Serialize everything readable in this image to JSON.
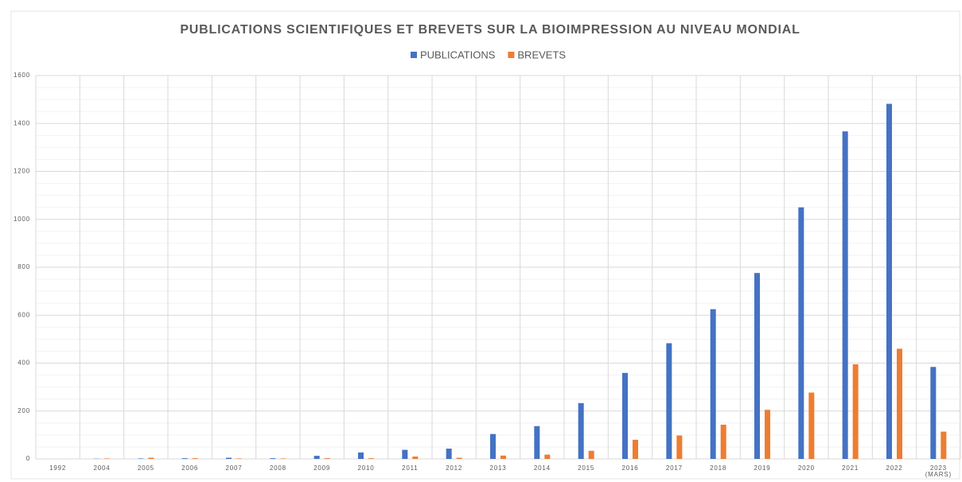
{
  "chart_data": {
    "type": "bar",
    "title": "PUBLICATIONS SCIENTIFIQUES ET BREVETS SUR LA BIOIMPRESSION AU NIVEAU MONDIAL",
    "categories": [
      "1992",
      "2004",
      "2005",
      "2006",
      "2007",
      "2008",
      "2009",
      "2010",
      "2011",
      "2012",
      "2013",
      "2014",
      "2015",
      "2016",
      "2017",
      "2018",
      "2019",
      "2020",
      "2021",
      "2022",
      "2023 (MARS)"
    ],
    "series": [
      {
        "name": "PUBLICATIONS",
        "color": "#4472c4",
        "values": [
          0,
          1,
          2,
          3,
          5,
          3,
          13,
          27,
          38,
          43,
          104,
          137,
          233,
          359,
          483,
          625,
          776,
          1050,
          1367,
          1482,
          384
        ]
      },
      {
        "name": "BREVETS",
        "color": "#ed7d31",
        "values": [
          0,
          2,
          5,
          3,
          2,
          2,
          3,
          3,
          10,
          5,
          14,
          18,
          34,
          80,
          98,
          143,
          205,
          277,
          395,
          460,
          114
        ]
      }
    ],
    "ylim": [
      0,
      1600
    ],
    "yticks": [
      0,
      200,
      400,
      600,
      800,
      1000,
      1200,
      1400,
      1600
    ],
    "minor_yticks": [
      50,
      100,
      150,
      250,
      300,
      350,
      450,
      500,
      550,
      650,
      700,
      750,
      850,
      900,
      950,
      1050,
      1100,
      1150,
      1250,
      1300,
      1350,
      1450,
      1500,
      1550
    ],
    "grid": true,
    "legend": "top"
  }
}
